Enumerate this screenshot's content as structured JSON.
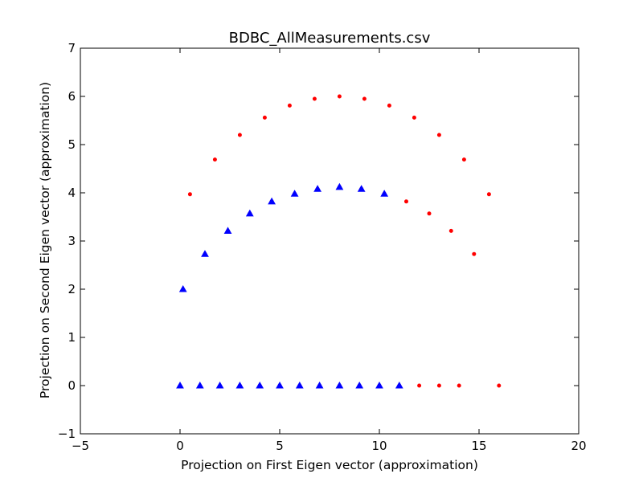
{
  "chart_data": {
    "type": "scatter",
    "title": "BDBC_AllMeasurements.csv",
    "xlabel": "Projection on First Eigen vector (approximation)",
    "ylabel": "Projection on Second Eigen vector (approximation)",
    "xlim": [
      -5,
      20
    ],
    "ylim": [
      -1,
      7
    ],
    "xticks": [
      -5,
      0,
      5,
      10,
      15,
      20
    ],
    "yticks": [
      -1,
      0,
      1,
      2,
      3,
      4,
      5,
      6,
      7
    ],
    "xtick_labels": [
      "−5",
      "0",
      "5",
      "10",
      "15",
      "20"
    ],
    "ytick_labels": [
      "−1",
      "0",
      "1",
      "2",
      "3",
      "4",
      "5",
      "6",
      "7"
    ],
    "grid": false,
    "series": [
      {
        "marker": "circle",
        "color": "#ff0000",
        "points": [
          [
            0.5,
            3.97
          ],
          [
            1.75,
            4.69
          ],
          [
            3.0,
            5.2
          ],
          [
            4.25,
            5.56
          ],
          [
            5.5,
            5.81
          ],
          [
            6.75,
            5.95
          ],
          [
            8.0,
            6.0
          ],
          [
            9.25,
            5.95
          ],
          [
            10.5,
            5.81
          ],
          [
            11.75,
            5.56
          ],
          [
            13.0,
            5.2
          ],
          [
            14.25,
            4.69
          ],
          [
            15.5,
            3.97
          ],
          [
            1.25,
            2.73
          ],
          [
            2.4,
            3.21
          ],
          [
            3.5,
            3.57
          ],
          [
            4.6,
            3.82
          ],
          [
            5.75,
            3.98
          ],
          [
            6.9,
            4.08
          ],
          [
            8.0,
            4.12
          ],
          [
            9.1,
            4.08
          ],
          [
            10.25,
            3.98
          ],
          [
            11.35,
            3.82
          ],
          [
            12.5,
            3.57
          ],
          [
            13.6,
            3.21
          ],
          [
            14.75,
            2.73
          ],
          [
            3,
            0
          ],
          [
            4,
            0
          ],
          [
            5,
            0
          ],
          [
            6,
            0
          ],
          [
            7,
            0
          ],
          [
            8,
            0
          ],
          [
            9,
            0
          ],
          [
            10,
            0
          ],
          [
            11,
            0
          ],
          [
            12,
            0
          ],
          [
            13,
            0
          ],
          [
            14,
            0
          ],
          [
            16,
            0
          ]
        ]
      },
      {
        "marker": "triangle",
        "color": "#0000ff",
        "points": [
          [
            0.15,
            2.0
          ],
          [
            1.25,
            2.73
          ],
          [
            2.4,
            3.21
          ],
          [
            3.5,
            3.57
          ],
          [
            4.6,
            3.82
          ],
          [
            5.75,
            3.98
          ],
          [
            6.9,
            4.08
          ],
          [
            8.0,
            4.12
          ],
          [
            9.1,
            4.08
          ],
          [
            10.25,
            3.98
          ],
          [
            0,
            0
          ],
          [
            1,
            0
          ],
          [
            2,
            0
          ],
          [
            3,
            0
          ],
          [
            4,
            0
          ],
          [
            5,
            0
          ],
          [
            6,
            0
          ],
          [
            7,
            0
          ],
          [
            8,
            0
          ],
          [
            9,
            0
          ],
          [
            10,
            0
          ],
          [
            11,
            0
          ]
        ]
      }
    ]
  }
}
